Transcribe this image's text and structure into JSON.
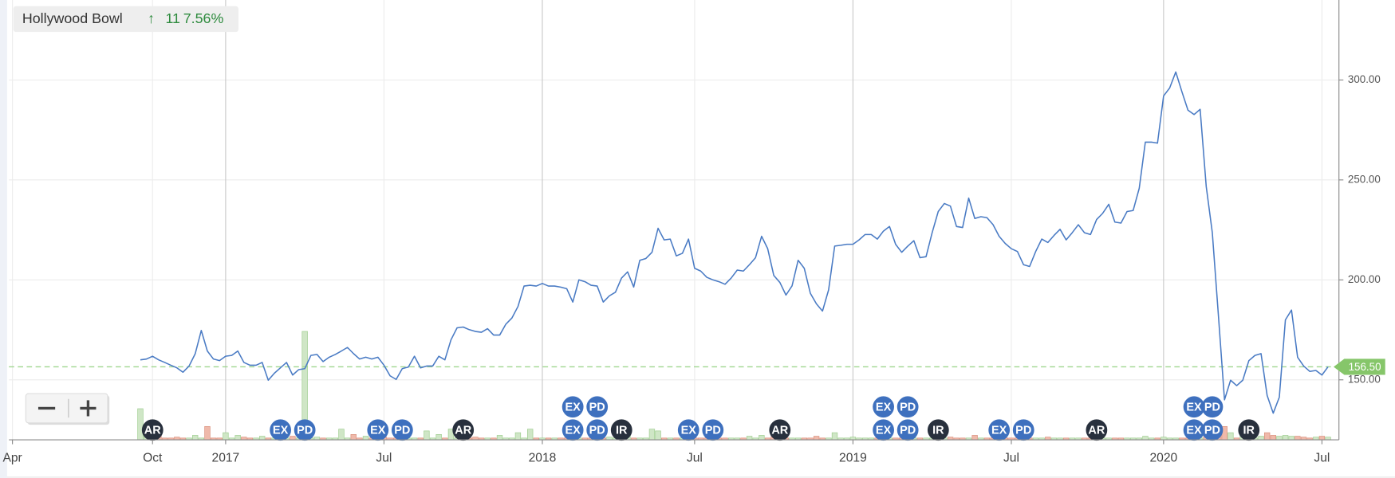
{
  "chart_data": {
    "type": "line",
    "title": "Hollywood Bowl",
    "change": "11",
    "change_pct": "7.56%",
    "color": "#4a7bc4",
    "up_color": "#cfe6c6",
    "down_color": "#efb9aa",
    "event_colors": {
      "EX": "#3e70be",
      "PD": "#3e70be",
      "AR": "#28303d",
      "IR": "#28303d"
    },
    "ylim": [
      120,
      340
    ],
    "yticks": [
      {
        "value": 150,
        "label": "150.00"
      },
      {
        "value": 200,
        "label": "200.00"
      },
      {
        "value": 250,
        "label": "250.00"
      },
      {
        "value": 300,
        "label": "300.00"
      }
    ],
    "grid": true,
    "last_price": {
      "value": 156.5,
      "label": "156.50"
    },
    "categories": [
      "Apr",
      null,
      null,
      null,
      null,
      null,
      null,
      null,
      null,
      null,
      null,
      null,
      null,
      null,
      null,
      null,
      null,
      null,
      null,
      null,
      null,
      null,
      null,
      "Oct",
      null,
      null,
      null,
      null,
      null,
      null,
      null,
      null,
      null,
      null,
      null,
      "2017",
      null,
      null,
      null,
      null,
      null,
      null,
      null,
      null,
      null,
      null,
      null,
      null,
      null,
      null,
      null,
      null,
      null,
      null,
      null,
      null,
      null,
      null,
      null,
      null,
      null,
      "Jul",
      null,
      null,
      null,
      null,
      null,
      null,
      null,
      null,
      null,
      null,
      null,
      null,
      null,
      null,
      null,
      null,
      null,
      null,
      null,
      null,
      null,
      null,
      null,
      null,
      null,
      "2018",
      null,
      null,
      null,
      null,
      null,
      null,
      null,
      null,
      null,
      null,
      null,
      null,
      null,
      null,
      null,
      null,
      null,
      null,
      null,
      null,
      null,
      null,
      null,
      null,
      "Jul",
      null,
      null,
      null,
      null,
      null,
      null,
      null,
      null,
      null,
      null,
      null,
      null,
      null,
      null,
      null,
      null,
      null,
      null,
      null,
      null,
      null,
      null,
      null,
      null,
      null,
      "2019",
      null,
      null,
      null,
      null,
      null,
      null,
      null,
      null,
      null,
      null,
      null,
      null,
      null,
      null,
      null,
      null,
      null,
      null,
      null,
      null,
      null,
      null,
      null,
      null,
      null,
      "Jul",
      null,
      null,
      null,
      null,
      null,
      null,
      null,
      null,
      null,
      null,
      null,
      null,
      null,
      null,
      null,
      null,
      null,
      null,
      null,
      null,
      null,
      null,
      null,
      null,
      "2020",
      null,
      null,
      null,
      null,
      null,
      null,
      null,
      null,
      null,
      null,
      null,
      null,
      null,
      null,
      null,
      null,
      null,
      null,
      null,
      null,
      null,
      null,
      null,
      null,
      null,
      "Jul",
      null
    ],
    "values": [
      null,
      null,
      null,
      null,
      null,
      null,
      null,
      null,
      null,
      null,
      null,
      null,
      null,
      null,
      null,
      null,
      null,
      null,
      null,
      null,
      null,
      160,
      160.4,
      161.8,
      160,
      158.7,
      157.3,
      156,
      153.8,
      156.9,
      163,
      174.7,
      164.4,
      160.4,
      159.6,
      161.8,
      162.2,
      164.4,
      158.7,
      157.3,
      157.3,
      158.7,
      149.8,
      153.3,
      156,
      158.7,
      152.4,
      155.1,
      155.6,
      162.2,
      162.7,
      159.1,
      161.3,
      162.7,
      164.4,
      166.2,
      163.1,
      160.4,
      161.3,
      160.4,
      161.3,
      157.3,
      152,
      150.2,
      155.6,
      156.4,
      161.8,
      156,
      156.9,
      156.9,
      161.8,
      160,
      170,
      176,
      176.4,
      175.1,
      174.2,
      173.8,
      175.6,
      172.4,
      172.4,
      177.8,
      180.9,
      186.7,
      196.9,
      197.3,
      196.9,
      198.2,
      196.9,
      196.9,
      196.4,
      195.6,
      188.9,
      200,
      199.1,
      197.3,
      196.9,
      188.9,
      192,
      193.8,
      200.9,
      204,
      196.4,
      209.8,
      210.7,
      213.8,
      225.8,
      220,
      220.4,
      212,
      213.3,
      220.4,
      205.8,
      204.4,
      201.3,
      200,
      199.1,
      197.8,
      200.9,
      204.9,
      204.4,
      207.6,
      211.1,
      221.8,
      215.6,
      202.2,
      198.7,
      192.4,
      197,
      209.8,
      205.8,
      193.3,
      188,
      184.4,
      195,
      216.9,
      217.3,
      217.8,
      217.8,
      220,
      222.7,
      222.7,
      220.4,
      224.4,
      226.7,
      217.8,
      213.8,
      216.9,
      219.6,
      211.1,
      211.6,
      223.6,
      234.2,
      238.2,
      236.9,
      226.7,
      226.2,
      240.9,
      230.7,
      231.6,
      231.1,
      227.6,
      221.8,
      218.2,
      215.6,
      214.2,
      207.6,
      206.7,
      214.2,
      220.4,
      218.7,
      222.2,
      225.3,
      220,
      223.6,
      227.6,
      223.6,
      222.7,
      230.2,
      233.3,
      237.8,
      228.9,
      228.4,
      234.2,
      234.7,
      245.8,
      268.9,
      268.9,
      268.4,
      292,
      296,
      304,
      294.2,
      284.9,
      282.7,
      285.3,
      246.7,
      223.6,
      182.2,
      140,
      149.8,
      147.1,
      149.8,
      159.6,
      162.2,
      163.1,
      142.2,
      133.3,
      141.3,
      180,
      184.9,
      161.3,
      156.9,
      154.2,
      154.7,
      152.4,
      156.5
    ],
    "volume": [
      null,
      null,
      null,
      null,
      null,
      null,
      null,
      null,
      null,
      null,
      null,
      null,
      null,
      null,
      null,
      null,
      null,
      null,
      null,
      null,
      null,
      35,
      8,
      2,
      4,
      2,
      2,
      3,
      2,
      2,
      5,
      2,
      15,
      2,
      2,
      8,
      2,
      5,
      3,
      2,
      2,
      4,
      2,
      2,
      6,
      2,
      4,
      2,
      122,
      2,
      3,
      2,
      2,
      2,
      12,
      2,
      6,
      2,
      4,
      2,
      2,
      3,
      2,
      2,
      2,
      2,
      2,
      2,
      10,
      2,
      6,
      2,
      12,
      2,
      5,
      2,
      3,
      2,
      2,
      2,
      5,
      2,
      2,
      8,
      2,
      12,
      2,
      2,
      2,
      2,
      2,
      2,
      2,
      2,
      2,
      2,
      2,
      2,
      3,
      2,
      2,
      8,
      2,
      2,
      2,
      12,
      10,
      2,
      2,
      2,
      2,
      2,
      2,
      2,
      2,
      2,
      2,
      2,
      2,
      2,
      2,
      4,
      2,
      5,
      2,
      6,
      2,
      2,
      2,
      2,
      2,
      2,
      4,
      2,
      2,
      8,
      2,
      2,
      3,
      2,
      2,
      2,
      2,
      2,
      2,
      2,
      2,
      2,
      2,
      2,
      2,
      2,
      2,
      2,
      3,
      2,
      2,
      2,
      5,
      2,
      2,
      2,
      2,
      2,
      2,
      2,
      2,
      2,
      2,
      2,
      3,
      2,
      2,
      2,
      2,
      2,
      2,
      2,
      2,
      2,
      2,
      2,
      2,
      2,
      2,
      2,
      4,
      2,
      2,
      3,
      2,
      2,
      2,
      2,
      4,
      2,
      10,
      8,
      10,
      15,
      8,
      2,
      5,
      4,
      2,
      4,
      8,
      5,
      4,
      5,
      4,
      4,
      3,
      2,
      3,
      4,
      3
    ],
    "events": [
      null,
      null,
      null,
      null,
      null,
      null,
      null,
      null,
      null,
      null,
      null,
      null,
      null,
      null,
      null,
      null,
      null,
      null,
      null,
      null,
      null,
      null,
      null,
      [
        "AR"
      ],
      null,
      null,
      null,
      null,
      null,
      null,
      null,
      null,
      null,
      null,
      null,
      null,
      null,
      null,
      null,
      null,
      null,
      null,
      null,
      null,
      [
        "EX"
      ],
      null,
      null,
      null,
      [
        "PD"
      ],
      null,
      null,
      null,
      null,
      null,
      null,
      null,
      null,
      null,
      null,
      null,
      [
        "EX"
      ],
      null,
      null,
      null,
      [
        "PD"
      ],
      null,
      null,
      null,
      null,
      null,
      null,
      null,
      null,
      null,
      [
        "AR"
      ],
      null,
      null,
      null,
      null,
      null,
      null,
      null,
      null,
      null,
      null,
      null,
      null,
      null,
      null,
      null,
      null,
      null,
      [
        "EX",
        "EX"
      ],
      null,
      null,
      null,
      [
        "PD",
        "PD"
      ],
      null,
      null,
      null,
      [
        "IR"
      ],
      null,
      null,
      null,
      null,
      null,
      null,
      null,
      null,
      null,
      null,
      [
        "EX"
      ],
      null,
      null,
      null,
      [
        "PD"
      ],
      null,
      null,
      null,
      null,
      null,
      null,
      null,
      null,
      null,
      null,
      [
        "AR"
      ],
      null,
      null,
      null,
      null,
      null,
      null,
      null,
      null,
      null,
      null,
      null,
      null,
      null,
      null,
      null,
      null,
      [
        "EX",
        "EX"
      ],
      null,
      null,
      null,
      [
        "PD",
        "PD"
      ],
      null,
      null,
      null,
      null,
      [
        "IR"
      ],
      null,
      null,
      null,
      null,
      null,
      null,
      null,
      null,
      null,
      [
        "EX"
      ],
      null,
      null,
      null,
      [
        "PD"
      ],
      null,
      null,
      null,
      null,
      null,
      null,
      null,
      null,
      null,
      null,
      null,
      [
        "AR"
      ],
      null,
      null,
      null,
      null,
      null,
      null,
      null,
      null,
      null,
      null,
      null,
      null,
      null,
      null,
      null,
      [
        "EX",
        "EX"
      ],
      null,
      null,
      [
        "PD",
        "PD"
      ],
      null,
      null,
      null,
      null,
      null,
      [
        "IR"
      ],
      null,
      null,
      null,
      null,
      null,
      null,
      null,
      null,
      null,
      null,
      null,
      null,
      null
    ]
  }
}
